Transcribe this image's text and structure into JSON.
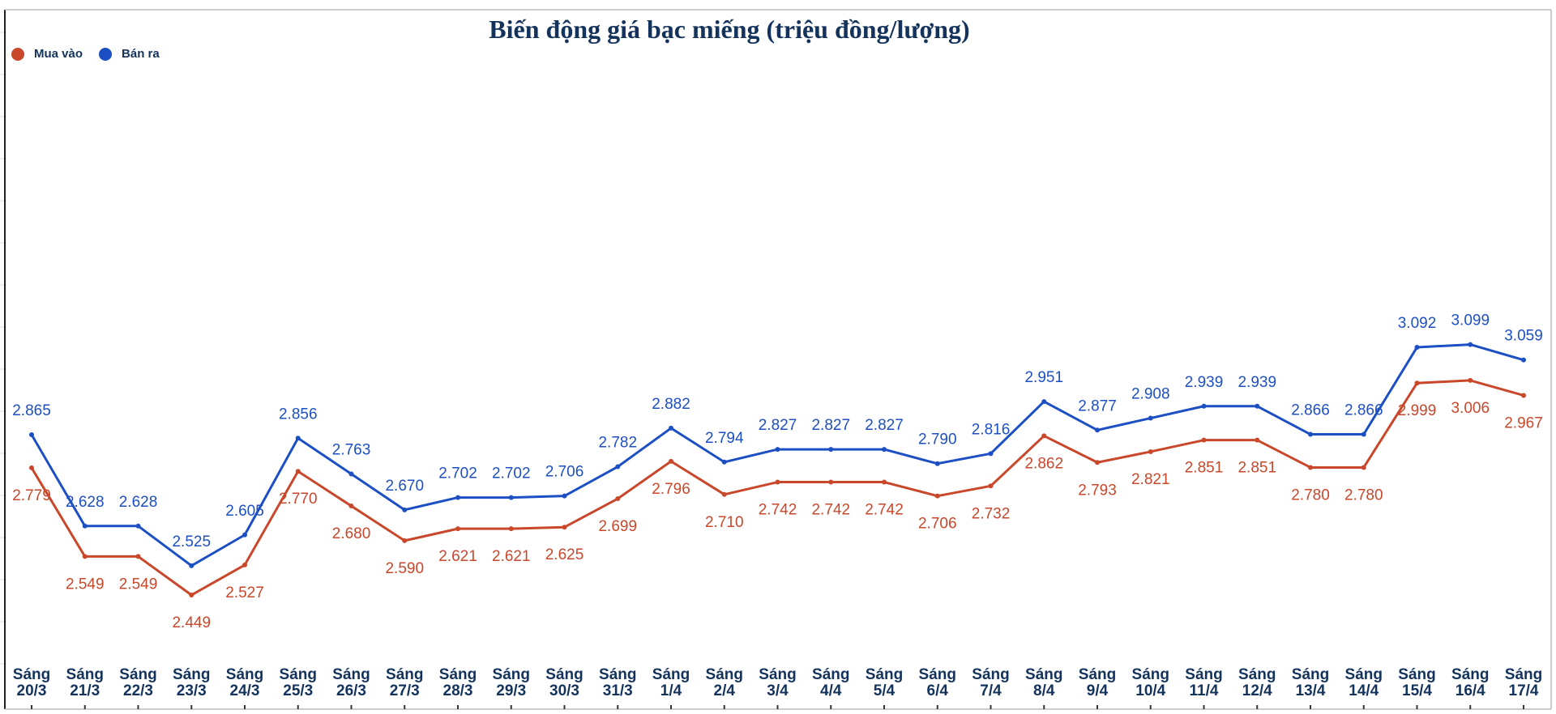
{
  "chart_data": {
    "type": "line",
    "title": "Biến động giá bạc miếng (triệu đồng/lượng)",
    "legend_position": "top-left",
    "categories": [
      [
        "Sáng",
        "20/3"
      ],
      [
        "Sáng",
        "21/3"
      ],
      [
        "Sáng",
        "22/3"
      ],
      [
        "Sáng",
        "23/3"
      ],
      [
        "Sáng",
        "24/3"
      ],
      [
        "Sáng",
        "25/3"
      ],
      [
        "Sáng",
        "26/3"
      ],
      [
        "Sáng",
        "27/3"
      ],
      [
        "Sáng",
        "28/3"
      ],
      [
        "Sáng",
        "29/3"
      ],
      [
        "Sáng",
        "30/3"
      ],
      [
        "Sáng",
        "31/3"
      ],
      [
        "Sáng",
        "1/4"
      ],
      [
        "Sáng",
        "2/4"
      ],
      [
        "Sáng",
        "3/4"
      ],
      [
        "Sáng",
        "4/4"
      ],
      [
        "Sáng",
        "5/4"
      ],
      [
        "Sáng",
        "6/4"
      ],
      [
        "Sáng",
        "7/4"
      ],
      [
        "Sáng",
        "8/4"
      ],
      [
        "Sáng",
        "9/4"
      ],
      [
        "Sáng",
        "10/4"
      ],
      [
        "Sáng",
        "11/4"
      ],
      [
        "Sáng",
        "12/4"
      ],
      [
        "Sáng",
        "13/4"
      ],
      [
        "Sáng",
        "14/4"
      ],
      [
        "Sáng",
        "15/4"
      ],
      [
        "Sáng",
        "16/4"
      ],
      [
        "Sáng",
        "17/4"
      ]
    ],
    "series": [
      {
        "name": "Mua vào",
        "color": "#c9472a",
        "values": [
          2.779,
          2.549,
          2.549,
          2.449,
          2.527,
          2.77,
          2.68,
          2.59,
          2.621,
          2.621,
          2.625,
          2.699,
          2.796,
          2.71,
          2.742,
          2.742,
          2.742,
          2.706,
          2.732,
          2.862,
          2.793,
          2.821,
          2.851,
          2.851,
          2.78,
          2.78,
          2.999,
          3.006,
          2.967
        ],
        "labels": [
          "2.779",
          "2.549",
          "2.549",
          "2.449",
          "2.527",
          "2.770",
          "2.680",
          "2.590",
          "2.621",
          "2.621",
          "2.625",
          "2.699",
          "2.796",
          "2.710",
          "2.742",
          "2.742",
          "2.742",
          "2.706",
          "2.732",
          "2.862",
          "2.793",
          "2.821",
          "2.851",
          "2.851",
          "2.780",
          "2.780",
          "2.999",
          "3.006",
          "2.967"
        ]
      },
      {
        "name": "Bán ra",
        "color": "#1d4fc4",
        "values": [
          2.865,
          2.628,
          2.628,
          2.525,
          2.605,
          2.856,
          2.763,
          2.67,
          2.702,
          2.702,
          2.706,
          2.782,
          2.882,
          2.794,
          2.827,
          2.827,
          2.827,
          2.79,
          2.816,
          2.951,
          2.877,
          2.908,
          2.939,
          2.939,
          2.866,
          2.866,
          3.092,
          3.099,
          3.059
        ],
        "labels": [
          "2.865",
          "2.628",
          "2.628",
          "2.525",
          "2.605",
          "2.856",
          "2.763",
          "2.670",
          "2.702",
          "2.702",
          "2.706",
          "2.782",
          "2.882",
          "2.794",
          "2.827",
          "2.827",
          "2.827",
          "2.790",
          "2.816",
          "2.951",
          "2.877",
          "2.908",
          "2.939",
          "2.939",
          "2.866",
          "2.866",
          "3.092",
          "3.099",
          "3.059"
        ]
      }
    ],
    "xlabel": "",
    "ylabel": "",
    "grid": false
  },
  "colors": {
    "title": "#14335c",
    "axis_label": "#14335c"
  }
}
